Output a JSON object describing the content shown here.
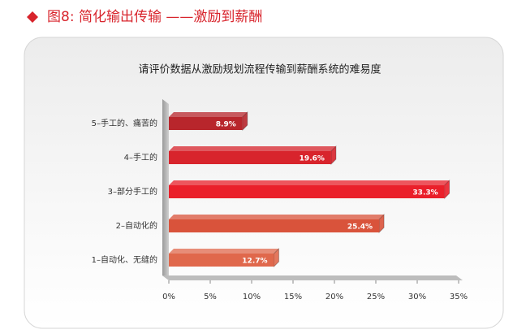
{
  "header": {
    "title": "图8: 简化输出传输 ——激励到薪酬"
  },
  "chart_data": {
    "type": "bar",
    "orientation": "horizontal",
    "title": "请评价数据从激励规划流程传输到薪酬系统的难易度",
    "categories": [
      "5–手工的、痛苦的",
      "4–手工的",
      "3–部分手工的",
      "2–自动化的",
      "1–自动化、无缝的"
    ],
    "values": [
      8.9,
      19.6,
      33.3,
      25.4,
      12.7
    ],
    "value_labels": [
      "8.9%",
      "19.6%",
      "33.3%",
      "25.4%",
      "12.7%"
    ],
    "colors": [
      "#b8262c",
      "#d8242c",
      "#ea1f2a",
      "#d9533b",
      "#e0684c"
    ],
    "xlim": [
      0,
      35
    ],
    "xticks": [
      {
        "value": 0,
        "label": "0%"
      },
      {
        "value": 5,
        "label": "5%"
      },
      {
        "value": 10,
        "label": "10%"
      },
      {
        "value": 15,
        "label": "15%"
      },
      {
        "value": 20,
        "label": "20%"
      },
      {
        "value": 25,
        "label": "25%"
      },
      {
        "value": 30,
        "label": "30%"
      },
      {
        "value": 35,
        "label": "35%"
      }
    ]
  }
}
